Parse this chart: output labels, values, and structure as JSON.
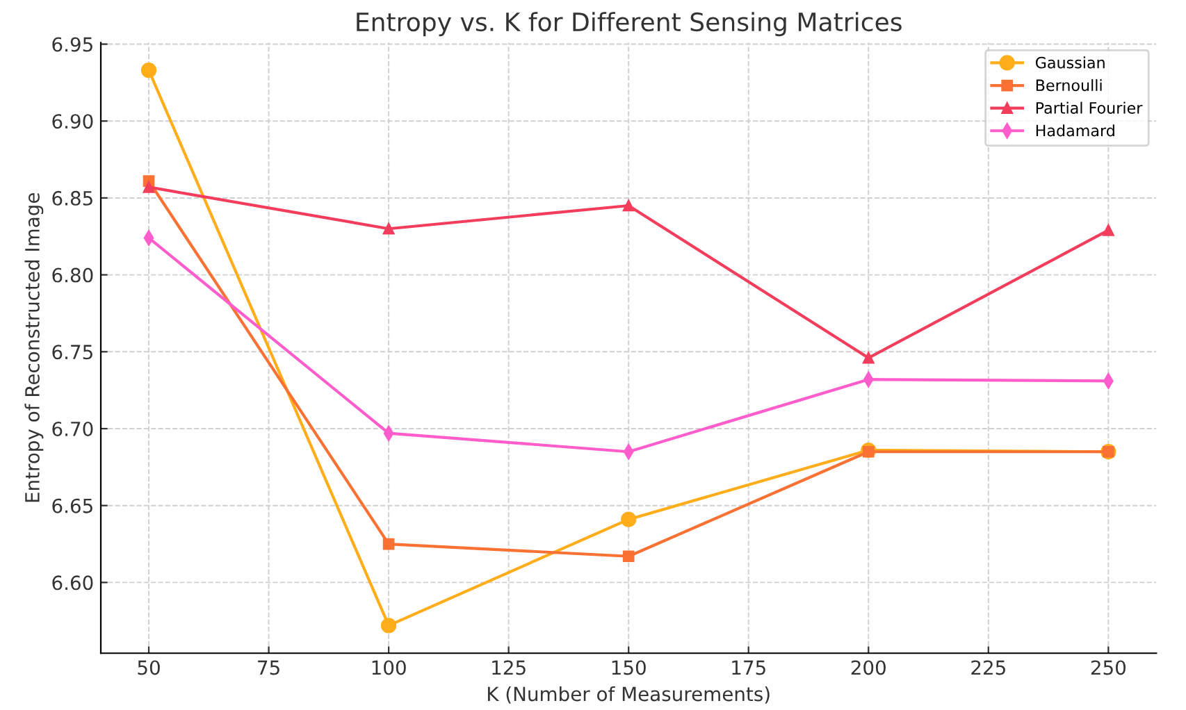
{
  "chart_data": {
    "type": "line",
    "title": "Entropy vs. K for Different Sensing Matrices",
    "xlabel": "K (Number of Measurements)",
    "ylabel": "Entropy of Reconstructed Image",
    "x": [
      50,
      100,
      150,
      200,
      250
    ],
    "series": [
      {
        "name": "Gaussian",
        "color": "#ffad1a",
        "marker": "circle",
        "values": [
          6.933,
          6.572,
          6.641,
          6.686,
          6.685
        ]
      },
      {
        "name": "Bernoulli",
        "color": "#f97233",
        "marker": "square",
        "values": [
          6.861,
          6.625,
          6.617,
          6.685,
          6.685
        ]
      },
      {
        "name": "Partial Fourier",
        "color": "#f23e5c",
        "marker": "triangle",
        "values": [
          6.857,
          6.83,
          6.845,
          6.746,
          6.829
        ]
      },
      {
        "name": "Hadamard",
        "color": "#ff5ccc",
        "marker": "diamond",
        "values": [
          6.824,
          6.697,
          6.685,
          6.732,
          6.731
        ]
      }
    ],
    "xlim": [
      40,
      260
    ],
    "xticks": [
      50,
      75,
      100,
      125,
      150,
      175,
      200,
      225,
      250
    ],
    "ylim": [
      6.554,
      6.951
    ],
    "yticks": [
      {
        "value": 6.6,
        "label": "6.60"
      },
      {
        "value": 6.65,
        "label": "6.65"
      },
      {
        "value": 6.7,
        "label": "6.70"
      },
      {
        "value": 6.75,
        "label": "6.75"
      },
      {
        "value": 6.8,
        "label": "6.80"
      },
      {
        "value": 6.85,
        "label": "6.85"
      },
      {
        "value": 6.9,
        "label": "6.90"
      },
      {
        "value": 6.95,
        "label": "6.95"
      }
    ],
    "grid": true,
    "legend": "top right",
    "line_style": "solid"
  }
}
